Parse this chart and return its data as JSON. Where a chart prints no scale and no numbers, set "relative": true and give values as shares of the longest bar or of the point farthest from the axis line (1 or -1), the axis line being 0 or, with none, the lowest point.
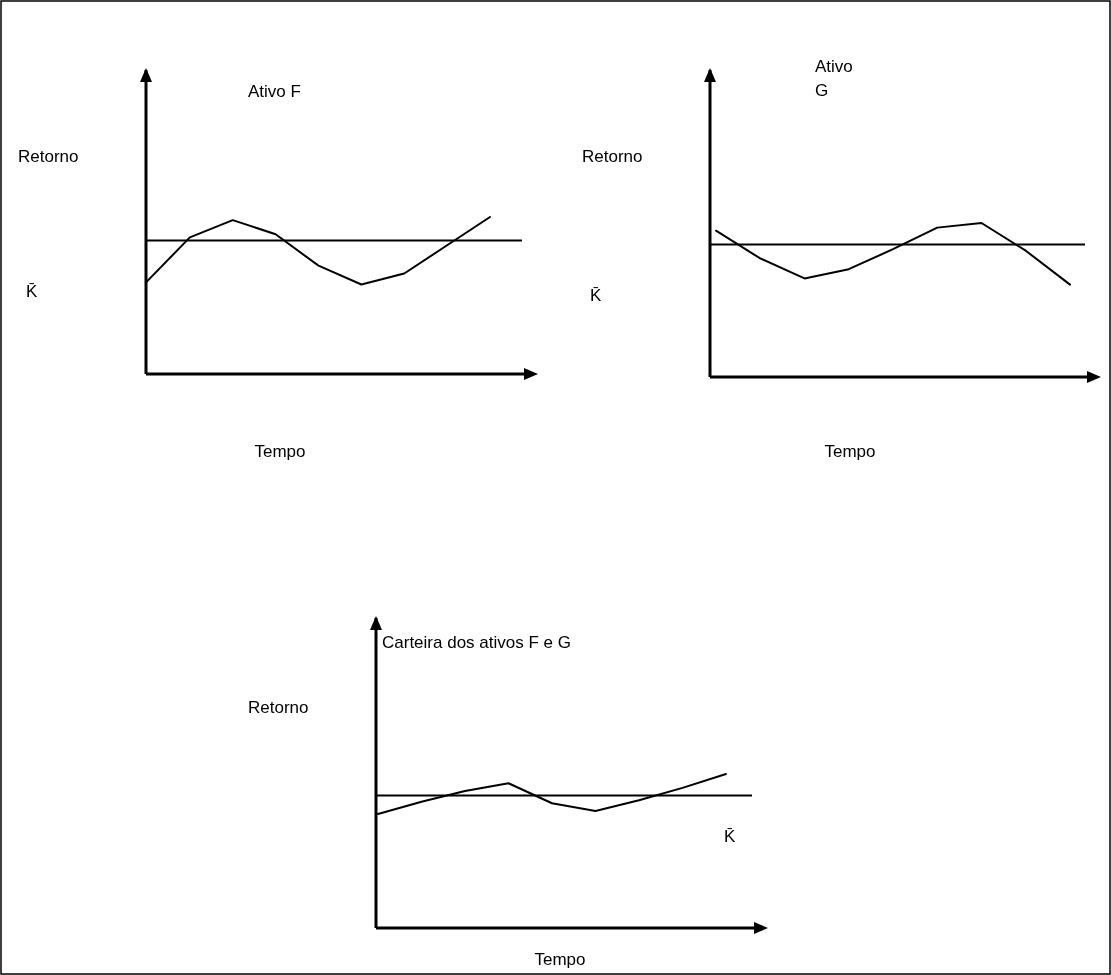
{
  "chart_data": [
    {
      "type": "line",
      "title": "Ativo F",
      "xlabel": "Tempo",
      "ylabel": "Retorno",
      "relative": true,
      "categories": [
        null,
        null,
        null,
        null,
        null,
        null,
        null,
        null,
        null
      ],
      "series": [
        {
          "color": "#000000",
          "values": [
            0.59,
            0.87,
            0.98,
            0.89,
            0.69,
            0.57,
            0.64,
            0.82,
            1
          ]
        }
      ],
      "ref_lines": [
        {
          "axis": "y",
          "value": 0.85,
          "label": "K̄",
          "color": "#000000"
        }
      ]
    },
    {
      "type": "line",
      "title": "Ativo G",
      "xlabel": "Tempo",
      "ylabel": "Retorno",
      "relative": true,
      "categories": [
        null,
        null,
        null,
        null,
        null,
        null,
        null,
        null,
        null
      ],
      "series": [
        {
          "color": "#000000",
          "values": [
            0.95,
            0.77,
            0.64,
            0.7,
            0.83,
            0.97,
            1,
            0.82,
            0.6
          ]
        }
      ],
      "ref_lines": [
        {
          "axis": "y",
          "value": 0.86,
          "label": "K̄",
          "color": "#000000"
        }
      ]
    },
    {
      "type": "line",
      "title": "Carteira dos ativos F e G",
      "xlabel": "Tempo",
      "ylabel": "Retorno",
      "relative": true,
      "categories": [
        null,
        null,
        null,
        null,
        null,
        null,
        null,
        null,
        null
      ],
      "series": [
        {
          "color": "#000000",
          "values": [
            0.74,
            0.82,
            0.89,
            0.94,
            0.81,
            0.76,
            0.83,
            0.91,
            1
          ]
        }
      ],
      "ref_lines": [
        {
          "axis": "y",
          "value": 0.86,
          "label": "K̄",
          "color": "#000000"
        }
      ]
    }
  ]
}
